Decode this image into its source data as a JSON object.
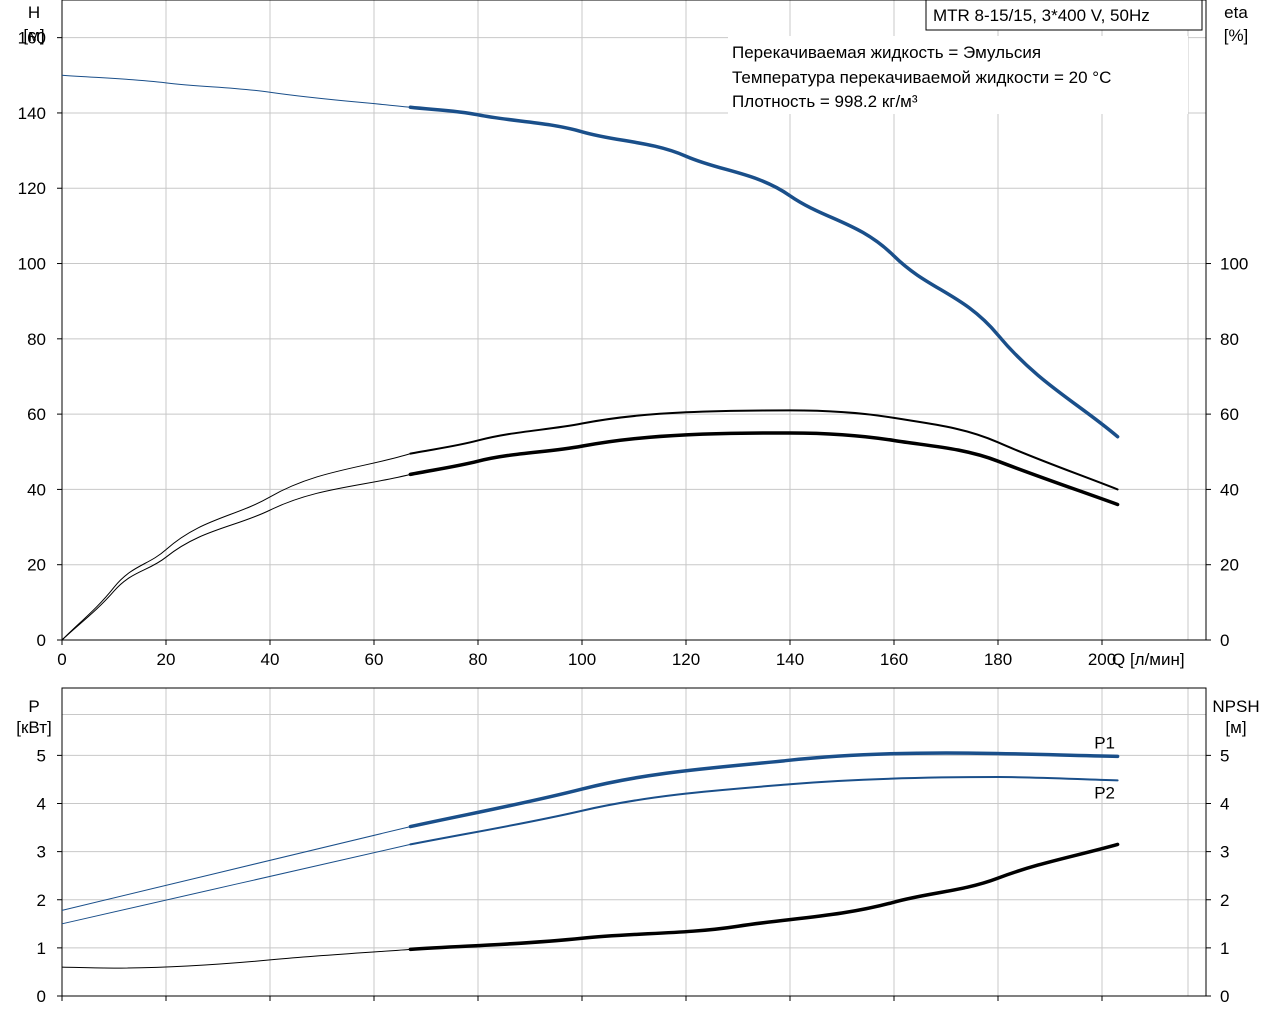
{
  "header": {
    "model": "MTR 8-15/15, 3*400 V, 50Hz",
    "fluid_line": "Перекачиваемая жидкость = Эмульсия",
    "temp_line": "Температура перекачиваемой жидкости = 20 °C",
    "density_line": "Плотность = 998.2 кг/м³"
  },
  "colors": {
    "blue": "#1a4f8a",
    "black": "#000000",
    "grid": "#c8c8c8"
  },
  "chart_data": [
    {
      "id": "top",
      "type": "line",
      "xlabel": "Q [л/мин]",
      "ylabel_left": [
        "H",
        "[м]"
      ],
      "ylabel_right": [
        "eta",
        "[%]"
      ],
      "xlim": [
        0,
        220
      ],
      "xticks": [
        0,
        20,
        40,
        60,
        80,
        100,
        120,
        140,
        160,
        180,
        200
      ],
      "ylim_left": [
        0,
        170
      ],
      "yticks_left": [
        0,
        20,
        40,
        60,
        80,
        100,
        120,
        140,
        160
      ],
      "ylim_right": [
        0,
        170
      ],
      "yticks_right": [
        0,
        20,
        40,
        60,
        80,
        100
      ],
      "grid": true,
      "series": [
        {
          "key": "H",
          "color": "blue",
          "axis": "left",
          "bold_from": 67,
          "x": [
            0,
            20,
            40,
            67,
            80,
            100,
            120,
            140,
            160,
            180,
            203
          ],
          "y": [
            150,
            148,
            145.5,
            141.5,
            139.5,
            135,
            128.5,
            118,
            102,
            81,
            54
          ]
        },
        {
          "key": "eta_total",
          "color": "black",
          "axis": "right",
          "bold_from": 67,
          "x": [
            0,
            10,
            20,
            40,
            67,
            80,
            100,
            120,
            140,
            160,
            180,
            203
          ],
          "y": [
            0,
            14,
            24,
            38,
            49.5,
            53,
            57.5,
            60.5,
            61,
            59,
            52.5,
            40
          ]
        },
        {
          "key": "eta_pump",
          "color": "black",
          "axis": "right",
          "bold_from": 67,
          "x": [
            0,
            10,
            20,
            40,
            67,
            80,
            100,
            120,
            140,
            160,
            180,
            203
          ],
          "y": [
            0,
            13,
            22,
            34.5,
            44,
            47.5,
            51.5,
            54.5,
            55,
            53,
            47.5,
            36
          ]
        }
      ]
    },
    {
      "id": "bottom",
      "type": "line",
      "xlim": [
        0,
        220
      ],
      "xticks": [
        0,
        20,
        40,
        60,
        80,
        100,
        120,
        140,
        160,
        180,
        200
      ],
      "ylabel_left": [
        "P",
        "[кВт]"
      ],
      "ylabel_right": [
        "NPSH",
        "[м]"
      ],
      "ylim_left": [
        0,
        6.4
      ],
      "yticks_left": [
        0,
        1,
        2,
        3,
        4,
        5
      ],
      "ylim_right": [
        0,
        6.4
      ],
      "yticks_right": [
        0,
        1,
        2,
        3,
        4,
        5
      ],
      "grid": true,
      "series": [
        {
          "key": "P1",
          "name": "P1",
          "color": "blue",
          "axis": "left",
          "bold_from": 67,
          "x": [
            0,
            67,
            100,
            140,
            170,
            203
          ],
          "y": [
            1.78,
            3.52,
            4.3,
            4.9,
            5.05,
            4.98
          ]
        },
        {
          "key": "P2",
          "name": "P2",
          "color": "blue",
          "axis": "left",
          "bold_from": 67,
          "x": [
            0,
            67,
            100,
            140,
            180,
            203
          ],
          "y": [
            1.5,
            3.15,
            3.85,
            4.4,
            4.55,
            4.48
          ]
        },
        {
          "key": "NPSH",
          "color": "black",
          "axis": "right",
          "bold_from": 67,
          "x": [
            0,
            10,
            40,
            67,
            100,
            130,
            160,
            180,
            203
          ],
          "y": [
            0.6,
            0.58,
            0.75,
            0.97,
            1.2,
            1.45,
            1.95,
            2.45,
            3.15
          ]
        }
      ]
    }
  ]
}
